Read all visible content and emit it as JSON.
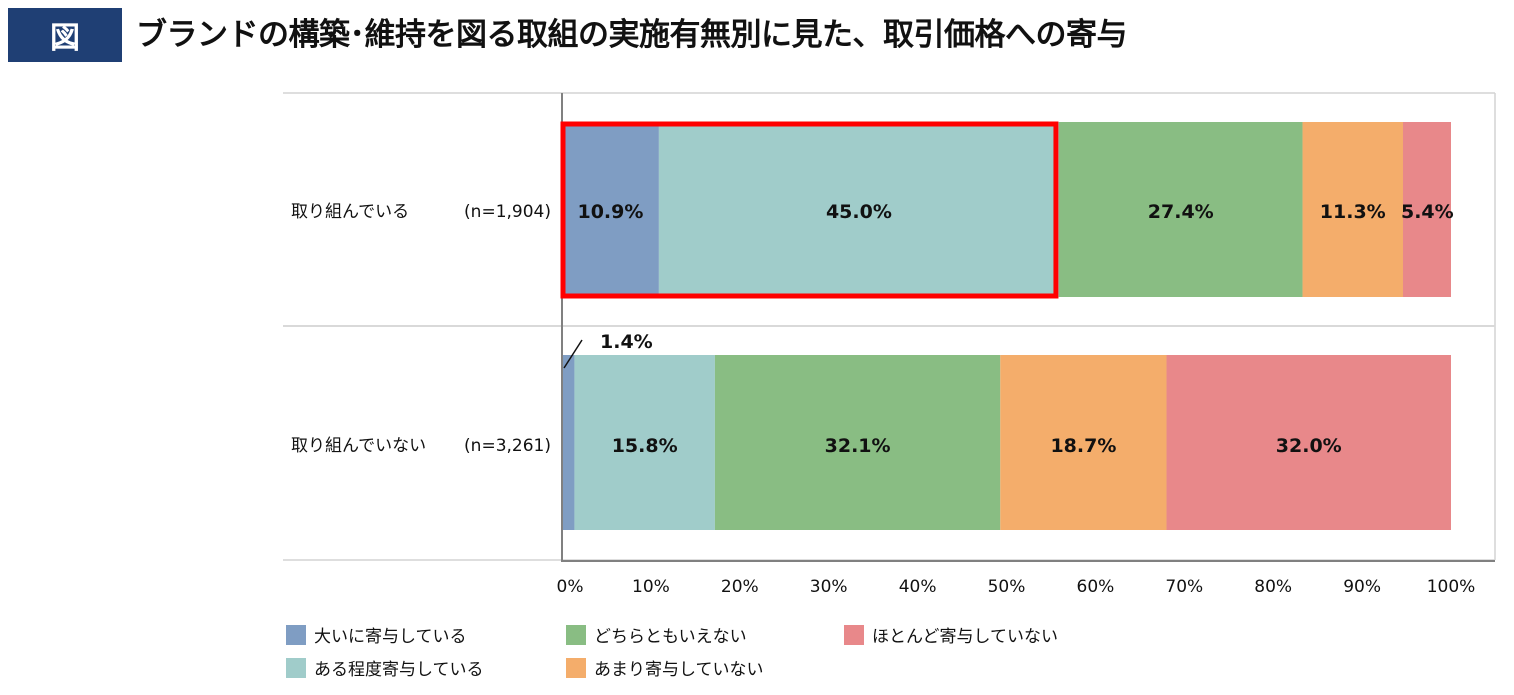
{
  "header": {
    "badge": "図",
    "title": "ブランドの構築･維持を図る取組の実施有無別に見た、取引価格への寄与"
  },
  "chart_data": {
    "type": "bar",
    "orientation": "horizontal",
    "stacked": true,
    "categories": [
      {
        "label": "取り組んでいる",
        "n": "(n=1,904)"
      },
      {
        "label": "取り組んでいない",
        "n": "(n=3,261)"
      }
    ],
    "series": [
      {
        "name": "大いに寄与している",
        "color": "#7f9dc3",
        "values": [
          10.9,
          1.4
        ]
      },
      {
        "name": "ある程度寄与している",
        "color": "#a0ccca",
        "values": [
          45.0,
          15.8
        ]
      },
      {
        "name": "どちらともいえない",
        "color": "#89bd83",
        "values": [
          27.4,
          32.1
        ]
      },
      {
        "name": "あまり寄与していない",
        "color": "#f4ad6b",
        "values": [
          11.3,
          18.7
        ]
      },
      {
        "name": "ほとんど寄与していない",
        "color": "#e8888a",
        "values": [
          5.4,
          32.0
        ]
      }
    ],
    "data_labels": [
      [
        "10.9%",
        "45.0%",
        "27.4%",
        "11.3%",
        "5.4%"
      ],
      [
        "1.4%",
        "15.8%",
        "32.1%",
        "18.7%",
        "32.0%"
      ]
    ],
    "xticks": [
      "0%",
      "10%",
      "20%",
      "30%",
      "40%",
      "50%",
      "60%",
      "70%",
      "80%",
      "90%",
      "100%"
    ],
    "xlim": [
      0,
      100
    ],
    "grid": false,
    "legend_position": "bottom",
    "highlight": {
      "category_index": 0,
      "from": 0,
      "to": 55.9,
      "color": "#ff0000"
    }
  }
}
